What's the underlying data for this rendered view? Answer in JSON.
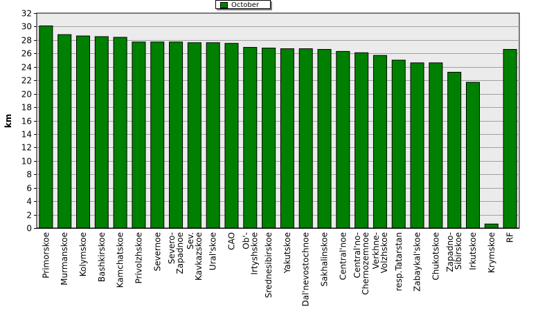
{
  "chart_data": {
    "type": "bar",
    "title": "",
    "xlabel": "",
    "ylabel": "km",
    "ylim": [
      0,
      32
    ],
    "y_tick_step": 2,
    "grid": true,
    "legend_position": "top-center",
    "bar_color": "#008000",
    "plot_background": "#ebebeb",
    "categories": [
      "Primorskoe",
      "Murmanskoe",
      "Kolymskoe",
      "Bashkirskoe",
      "Kamchatskoe",
      "Privolzhskoe",
      "Severnoe",
      "Severo-\nZapadnoe",
      "Sev.\nKavkazskoe",
      "Ural'skoe",
      "CAO",
      "Ob'-\nIrtyshskoe",
      "Srednesibirskoe",
      "Yakutskoe",
      "Dal'nevostochnoe",
      "Sakhalinskoe",
      "Central'noe",
      "Central'no-\nChernozemnoe",
      "Verkhne-\nVolzhskoe",
      "resp.Tatarstan",
      "Zabaykal'skoe",
      "Chukotskoe",
      "Zapadno-\nSibirskoe",
      "Irkutskoe",
      "Krymskoe",
      "RF"
    ],
    "series": [
      {
        "name": "October",
        "values": [
          30.1,
          28.8,
          28.6,
          28.5,
          28.4,
          27.7,
          27.7,
          27.7,
          27.6,
          27.6,
          27.5,
          26.9,
          26.8,
          26.7,
          26.7,
          26.6,
          26.3,
          26.1,
          25.7,
          25.0,
          24.6,
          24.6,
          23.2,
          21.7,
          0.6,
          26.6
        ]
      }
    ]
  }
}
